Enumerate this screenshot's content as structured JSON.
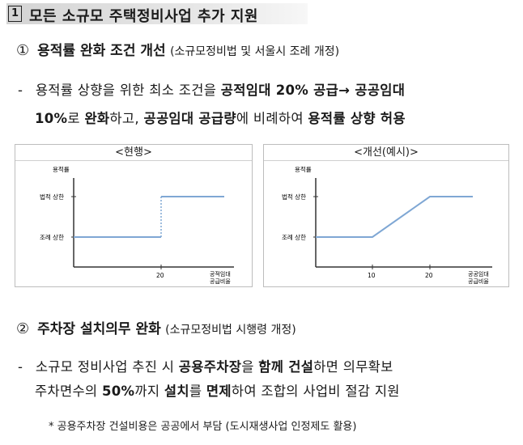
{
  "heading": {
    "number": "1",
    "title": "모든 소규모 주택정비사업 추가 지원"
  },
  "section1": {
    "num": "①",
    "title": "용적률 완화 조건 개선",
    "paren": "(소규모정비법 및 서울시 조례 개정)",
    "bullet": "-",
    "line1": {
      "t1": "용적률 상향을 위한 최소 조건을 ",
      "b1": "공적임대 20% 공급→ 공공임대"
    },
    "line2": {
      "b1": "10%",
      "t1": "로 ",
      "b2": "완화",
      "t2": "하고, ",
      "b3": "공공임대 공급량",
      "t3": "에 비례하여 ",
      "b4": "용적률 상향 허용"
    }
  },
  "charts": [
    {
      "title": "<현행>",
      "ylabel": "용적률",
      "y_ticks": [
        "법적 상한",
        "조례 상한"
      ],
      "x_ticks": [
        "20"
      ],
      "xlabel": [
        "공적임대",
        "공급비율"
      ],
      "line_color": "#7fa7d4",
      "chart_data": {
        "type": "line",
        "x": [
          0,
          20,
          20,
          35
        ],
        "y": [
          "조례 상한",
          "조례 상한",
          "법적 상한",
          "법적 상한"
        ],
        "note": "step at 20"
      }
    },
    {
      "title": "<개선(예시)>",
      "ylabel": "용적률",
      "y_ticks": [
        "법적 상한",
        "조례 상한"
      ],
      "x_ticks": [
        "10",
        "20"
      ],
      "xlabel": [
        "공공임대",
        "공급비율"
      ],
      "line_color": "#7fa7d4",
      "chart_data": {
        "type": "line",
        "x": [
          0,
          10,
          20,
          30
        ],
        "y": [
          "조례 상한",
          "조례 상한",
          "법적 상한",
          "법적 상한"
        ]
      }
    }
  ],
  "section2": {
    "num": "②",
    "title": "주차장 설치의무 완화",
    "paren": "(소규모정비법 시행령 개정)",
    "bullet": "-",
    "line1": {
      "t1": "소규모 정비사업 추진 시 ",
      "b1": "공용주차장",
      "t2": "을 ",
      "b2": "함께 건설",
      "t3": "하면 의무확보"
    },
    "line2": {
      "t1": "주차면수의 ",
      "b1": "50%",
      "t2": "까지 ",
      "b2": "설치",
      "t3": "를 ",
      "b3": "면제",
      "t4": "하여 조합의 사업비 절감 지원"
    },
    "note": "* 공용주차장 건설비용은 공공에서 부담 (도시재생사업 인정제도 활용)"
  }
}
